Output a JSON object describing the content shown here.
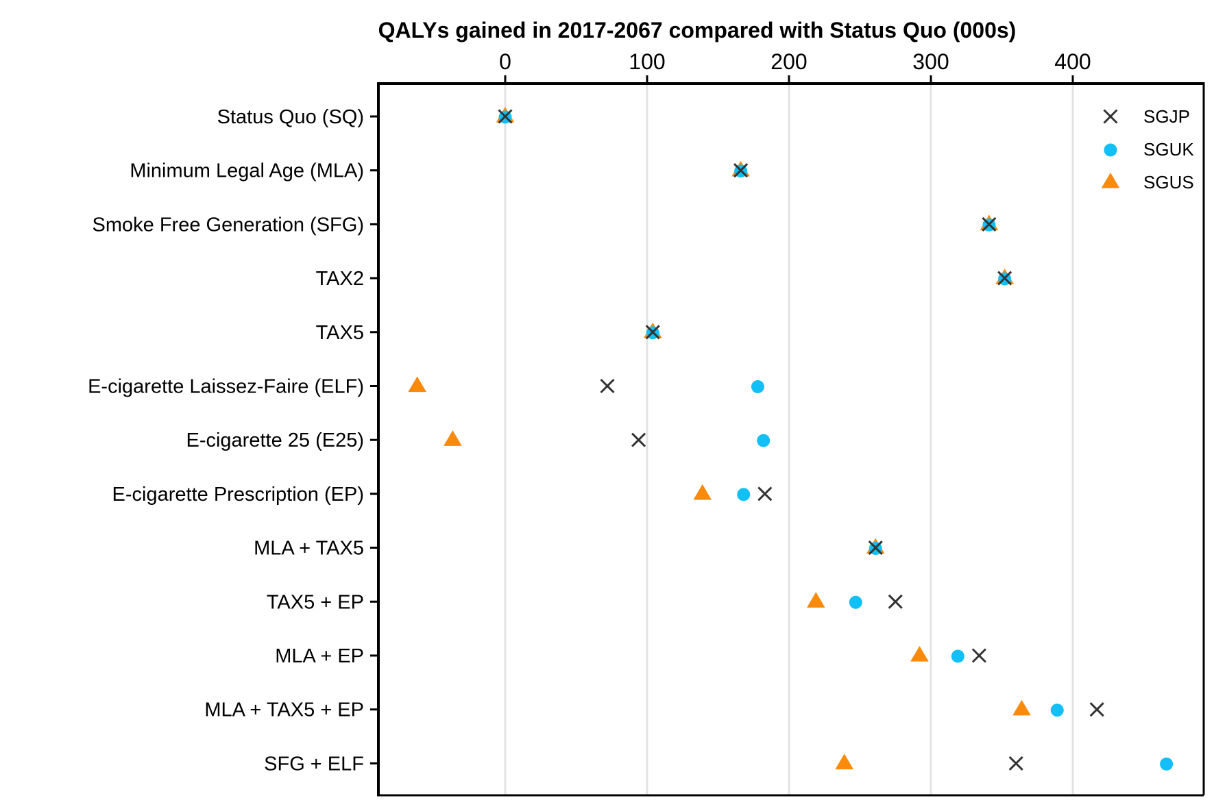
{
  "chart_data": {
    "type": "scatter",
    "title": "QALYs gained in 2017-2067 compared with Status Quo (000s)",
    "xlabel": "QALYs gained in 2017-2067 compared with Status Quo (000s)",
    "ylabel": "",
    "axis_position": "top",
    "xlim": [
      -89,
      492
    ],
    "xticks": [
      0,
      100,
      200,
      300,
      400
    ],
    "grid": "vertical",
    "legend_position": "top-right",
    "categories": [
      "Status Quo (SQ)",
      "Minimum Legal Age (MLA)",
      "Smoke Free Generation (SFG)",
      "TAX2",
      "TAX5",
      "E-cigarette Laissez-Faire (ELF)",
      "E-cigarette 25 (E25)",
      "E-cigarette Prescription (EP)",
      "MLA + TAX5",
      "TAX5 + EP",
      "MLA + EP",
      "MLA + TAX5 + EP",
      "SFG + ELF"
    ],
    "series": [
      {
        "name": "SGJP",
        "marker": "cross",
        "color": "#333333",
        "values": [
          0,
          166,
          341,
          352,
          104,
          72,
          94,
          183,
          261,
          275,
          334,
          417,
          360
        ]
      },
      {
        "name": "SGUK",
        "marker": "circle",
        "color": "#12BFF6",
        "values": [
          0,
          166,
          341,
          352,
          104,
          178,
          182,
          168,
          261,
          247,
          319,
          389,
          466
        ]
      },
      {
        "name": "SGUS",
        "marker": "triangle",
        "color": "#F98A0B",
        "values": [
          0,
          166,
          341,
          352,
          104,
          -62,
          -37,
          139,
          261,
          219,
          292,
          364,
          239
        ]
      }
    ]
  }
}
